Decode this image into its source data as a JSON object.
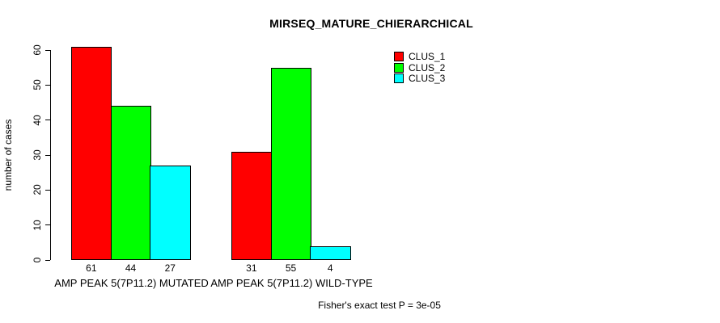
{
  "title": "MIRSEQ_MATURE_CHIERARCHICAL",
  "footer": "Fisher's exact test P = 3e-05",
  "y_axis": {
    "label": "number of cases",
    "ticks": [
      0,
      10,
      20,
      30,
      40,
      50,
      60
    ]
  },
  "chart_data": {
    "type": "bar",
    "title": "MIRSEQ_MATURE_CHIERARCHICAL",
    "xlabel": "",
    "ylabel": "number of cases",
    "ylim": [
      0,
      60
    ],
    "grid": false,
    "legend_position": "top-right",
    "bar_value_labels_shown": true,
    "categories": [
      "AMP PEAK 5(7P11.2) MUTATED",
      "AMP PEAK 5(7P11.2) WILD-TYPE"
    ],
    "series": [
      {
        "name": "CLUS_1",
        "color": "#ff0000",
        "values": [
          61,
          31
        ]
      },
      {
        "name": "CLUS_2",
        "color": "#00ff00",
        "values": [
          44,
          55
        ]
      },
      {
        "name": "CLUS_3",
        "color": "#00ffff",
        "values": [
          27,
          4
        ]
      }
    ],
    "annotation": "Fisher's exact test P = 3e-05"
  }
}
